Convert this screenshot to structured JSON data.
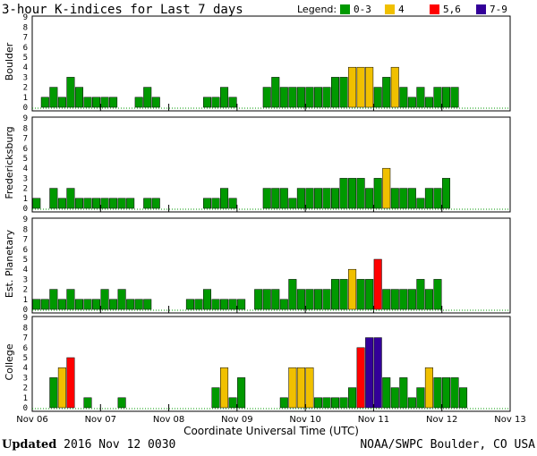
{
  "chart_data": {
    "type": "bar",
    "title": "3-hour K-indices for Last 7 days",
    "legend": {
      "label": "Legend:",
      "placement": "top-right",
      "items": [
        {
          "label": "0-3",
          "color": "#009900"
        },
        {
          "label": "4",
          "color": "#f0c000"
        },
        {
          "label": "5,6",
          "color": "#ff0000"
        },
        {
          "label": "7-9",
          "color": "#330099"
        }
      ]
    },
    "xlabel": "Coordinate Universal Time (UTC)",
    "x_ticks": [
      "Nov 06",
      "Nov 07",
      "Nov 08",
      "Nov 09",
      "Nov 10",
      "Nov 11",
      "Nov 12",
      "Nov 13"
    ],
    "y_ticks": [
      "0",
      "1",
      "2",
      "3",
      "4",
      "5",
      "6",
      "7",
      "8",
      "9"
    ],
    "ylim": [
      0,
      9
    ],
    "bins_per_day": 8,
    "days": 7,
    "series": [
      {
        "name": "Boulder",
        "values": [
          0,
          1,
          2,
          1,
          3,
          2,
          1,
          1,
          1,
          1,
          0,
          0,
          1,
          2,
          1,
          0,
          0,
          0,
          0,
          0,
          1,
          1,
          2,
          1,
          0,
          0,
          0,
          2,
          3,
          2,
          2,
          2,
          2,
          2,
          2,
          3,
          3,
          4,
          4,
          4,
          2,
          3,
          4,
          2,
          1,
          2,
          1,
          2,
          2,
          2
        ]
      },
      {
        "name": "Fredericksburg",
        "values": [
          1,
          0,
          2,
          1,
          2,
          1,
          1,
          1,
          1,
          1,
          1,
          1,
          0,
          1,
          1,
          0,
          0,
          0,
          0,
          0,
          1,
          1,
          2,
          1,
          0,
          0,
          0,
          2,
          2,
          2,
          1,
          2,
          2,
          2,
          2,
          2,
          3,
          3,
          3,
          2,
          3,
          4,
          2,
          2,
          2,
          1,
          2,
          2,
          3
        ]
      },
      {
        "name": "Est. Planetary",
        "values": [
          1,
          1,
          2,
          1,
          2,
          1,
          1,
          1,
          2,
          1,
          2,
          1,
          1,
          1,
          0,
          0,
          0,
          0,
          1,
          1,
          2,
          1,
          1,
          1,
          1,
          0,
          2,
          2,
          2,
          1,
          3,
          2,
          2,
          2,
          2,
          3,
          3,
          4,
          3,
          3,
          5,
          2,
          2,
          2,
          2,
          3,
          2,
          3
        ]
      },
      {
        "name": "College",
        "values": [
          0,
          0,
          3,
          4,
          5,
          0,
          1,
          0,
          0,
          0,
          1,
          0,
          0,
          0,
          0,
          0,
          0,
          0,
          0,
          0,
          0,
          2,
          4,
          1,
          3,
          0,
          0,
          0,
          0,
          1,
          4,
          4,
          4,
          1,
          1,
          1,
          1,
          2,
          6,
          7,
          7,
          3,
          2,
          3,
          1,
          2,
          4,
          3,
          3,
          3,
          2
        ]
      }
    ]
  },
  "footer": {
    "updated_label": "Updated",
    "updated_value": "2016 Nov 12 0030",
    "credit": "NOAA/SWPC Boulder, CO USA"
  }
}
